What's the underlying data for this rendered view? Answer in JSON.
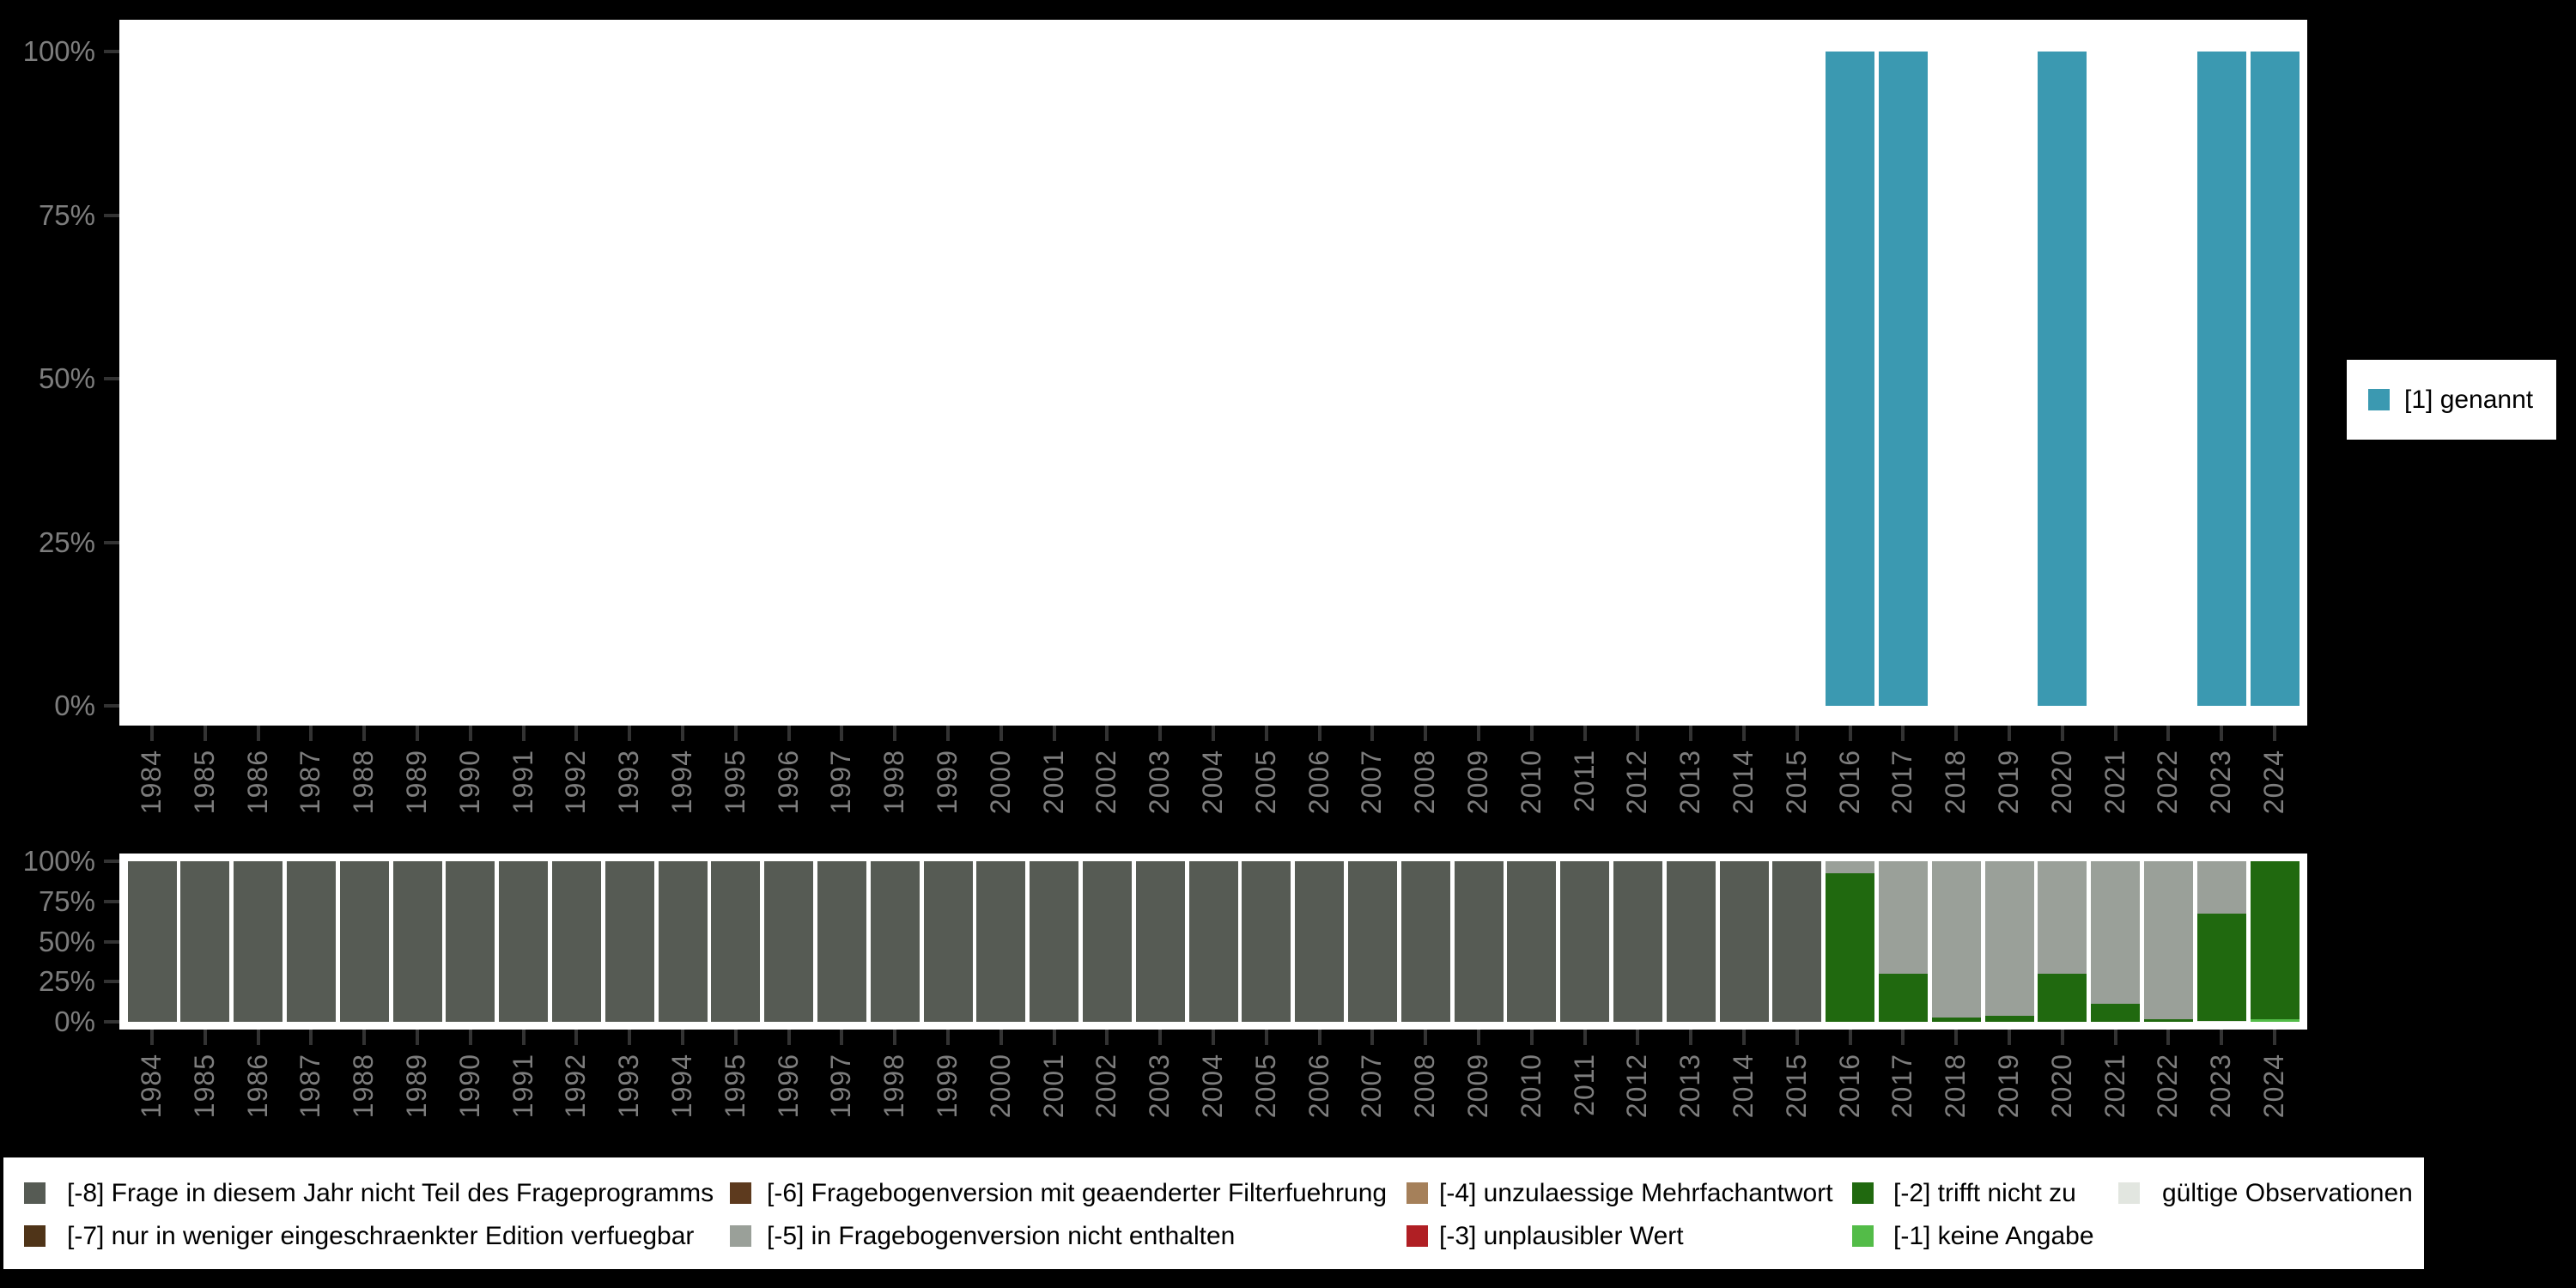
{
  "colors": {
    "background": "#000000",
    "panel": "#ffffff",
    "axis_text": "#7d7d7d",
    "tick_mark": "#333333",
    "legend_text": "#000000"
  },
  "top_legend": {
    "label": "[1] genannt",
    "color": "#3B99B1"
  },
  "chart_data": [
    {
      "type": "bar",
      "title": "",
      "xlabel": "",
      "ylabel": "",
      "x_years": [
        1984,
        1985,
        1986,
        1987,
        1988,
        1989,
        1990,
        1991,
        1992,
        1993,
        1994,
        1995,
        1996,
        1997,
        1998,
        1999,
        2000,
        2001,
        2002,
        2003,
        2004,
        2005,
        2006,
        2007,
        2008,
        2009,
        2010,
        2011,
        2012,
        2013,
        2014,
        2015,
        2016,
        2017,
        2018,
        2019,
        2020,
        2021,
        2022,
        2023,
        2024
      ],
      "ylim": [
        0,
        100
      ],
      "y_tick_labels": [
        "0%",
        "25%",
        "50%",
        "75%",
        "100%"
      ],
      "grid": false,
      "legend_position": "right",
      "series": [
        {
          "name": "[1] genannt",
          "color": "#3B99B1",
          "values_by_year": {
            "2016": 100,
            "2017": 100,
            "2020": 100,
            "2023": 100,
            "2024": 100
          }
        }
      ]
    },
    {
      "type": "bar",
      "subtype": "stacked",
      "title": "",
      "xlabel": "",
      "ylabel": "",
      "x_years": [
        1984,
        1985,
        1986,
        1987,
        1988,
        1989,
        1990,
        1991,
        1992,
        1993,
        1994,
        1995,
        1996,
        1997,
        1998,
        1999,
        2000,
        2001,
        2002,
        2003,
        2004,
        2005,
        2006,
        2007,
        2008,
        2009,
        2010,
        2011,
        2012,
        2013,
        2014,
        2015,
        2016,
        2017,
        2018,
        2019,
        2020,
        2021,
        2022,
        2023,
        2024
      ],
      "ylim": [
        0,
        100
      ],
      "y_tick_labels": [
        "0%",
        "25%",
        "50%",
        "75%",
        "100%"
      ],
      "grid": false,
      "stack_order_bottom_to_top": [
        "gueltige",
        "-1",
        "-2",
        "-3",
        "-4",
        "-5",
        "-6",
        "-7",
        "-8"
      ],
      "bars_by_year": {
        "1984": {
          "-8": 100
        },
        "1985": {
          "-8": 100
        },
        "1986": {
          "-8": 100
        },
        "1987": {
          "-8": 100
        },
        "1988": {
          "-8": 100
        },
        "1989": {
          "-8": 100
        },
        "1990": {
          "-8": 100
        },
        "1991": {
          "-8": 100
        },
        "1992": {
          "-8": 100
        },
        "1993": {
          "-8": 100
        },
        "1994": {
          "-8": 100
        },
        "1995": {
          "-8": 100
        },
        "1996": {
          "-8": 100
        },
        "1997": {
          "-8": 100
        },
        "1998": {
          "-8": 100
        },
        "1999": {
          "-8": 100
        },
        "2000": {
          "-8": 100
        },
        "2001": {
          "-8": 100
        },
        "2002": {
          "-8": 100
        },
        "2003": {
          "-8": 100
        },
        "2004": {
          "-8": 100
        },
        "2005": {
          "-8": 100
        },
        "2006": {
          "-8": 100
        },
        "2007": {
          "-8": 100
        },
        "2008": {
          "-8": 100
        },
        "2009": {
          "-8": 100
        },
        "2010": {
          "-8": 100
        },
        "2011": {
          "-8": 100
        },
        "2012": {
          "-8": 100
        },
        "2013": {
          "-8": 100
        },
        "2014": {
          "-8": 100
        },
        "2015": {
          "-8": 100
        },
        "2016": {
          "-2": 92.5,
          "-5": 7.5
        },
        "2017": {
          "-2": 30,
          "-5": 70
        },
        "2018": {
          "-2": 2.5,
          "-5": 97.5
        },
        "2019": {
          "-2": 4,
          "-5": 96
        },
        "2020": {
          "-2": 30,
          "-5": 70
        },
        "2021": {
          "-2": 11,
          "-5": 89
        },
        "2022": {
          "-2": 1.5,
          "-5": 98.5
        },
        "2023": {
          "gueltige": 0.7,
          "-2": 66.5,
          "-5": 32.8
        },
        "2024": {
          "-1": 1.5,
          "-2": 98.5
        }
      }
    }
  ],
  "legend_items": [
    {
      "key": "-8",
      "label": "[-8] Frage in diesem Jahr nicht Teil des Frageprogramms",
      "color": "#565B54",
      "col": 0,
      "row": 0
    },
    {
      "key": "-7",
      "label": "[-7] nur in weniger eingeschraenkter Edition verfuegbar",
      "color": "#4F3418",
      "col": 0,
      "row": 1
    },
    {
      "key": "-6",
      "label": "[-6] Fragebogenversion mit geaenderter Filterfuehrung",
      "color": "#5D3A1E",
      "col": 1,
      "row": 0
    },
    {
      "key": "-5",
      "label": "[-5] in Fragebogenversion nicht enthalten",
      "color": "#9AA099",
      "col": 1,
      "row": 1
    },
    {
      "key": "-4",
      "label": "[-4] unzulaessige Mehrfachantwort",
      "color": "#A5805A",
      "col": 2,
      "row": 0
    },
    {
      "key": "-3",
      "label": "[-3] unplausibler Wert",
      "color": "#B01F24",
      "col": 2,
      "row": 1
    },
    {
      "key": "-2",
      "label": "[-2] trifft nicht zu",
      "color": "#20690F",
      "col": 3,
      "row": 0
    },
    {
      "key": "-1",
      "label": "[-1] keine Angabe",
      "color": "#53BC48",
      "col": 3,
      "row": 1
    },
    {
      "key": "gueltige",
      "label": "gültige Observationen",
      "color": "#E2E6E0",
      "col": 4,
      "row": 0
    }
  ]
}
